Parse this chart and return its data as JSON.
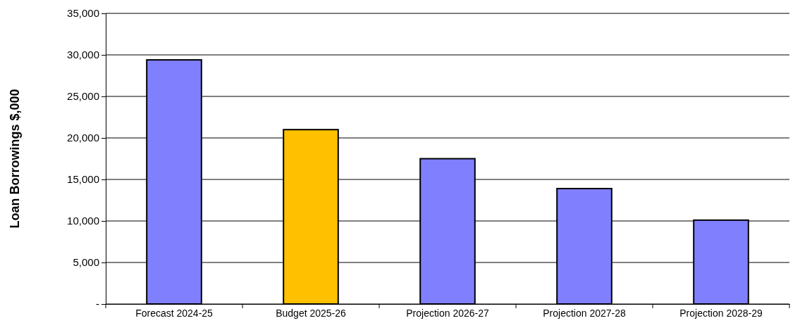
{
  "chart_data": {
    "type": "bar",
    "ylabel": "Loan Borrowings $,000",
    "categories": [
      "Forecast 2024-25",
      "Budget 2025-26",
      "Projection 2026-27",
      "Projection 2027-28",
      "Projection 2028-29"
    ],
    "values": [
      29400,
      21000,
      17500,
      13900,
      10100
    ],
    "colors": [
      "#8080ff",
      "#ffc000",
      "#8080ff",
      "#8080ff",
      "#8080ff"
    ],
    "ylim": [
      0,
      35000
    ],
    "yticks": [
      {
        "value": 0,
        "label": "-"
      },
      {
        "value": 5000,
        "label": "5,000"
      },
      {
        "value": 10000,
        "label": "10,000"
      },
      {
        "value": 15000,
        "label": "15,000"
      },
      {
        "value": 20000,
        "label": "20,000"
      },
      {
        "value": 25000,
        "label": "25,000"
      },
      {
        "value": 30000,
        "label": "30,000"
      },
      {
        "value": 35000,
        "label": "35,000"
      }
    ],
    "grid": "y"
  }
}
